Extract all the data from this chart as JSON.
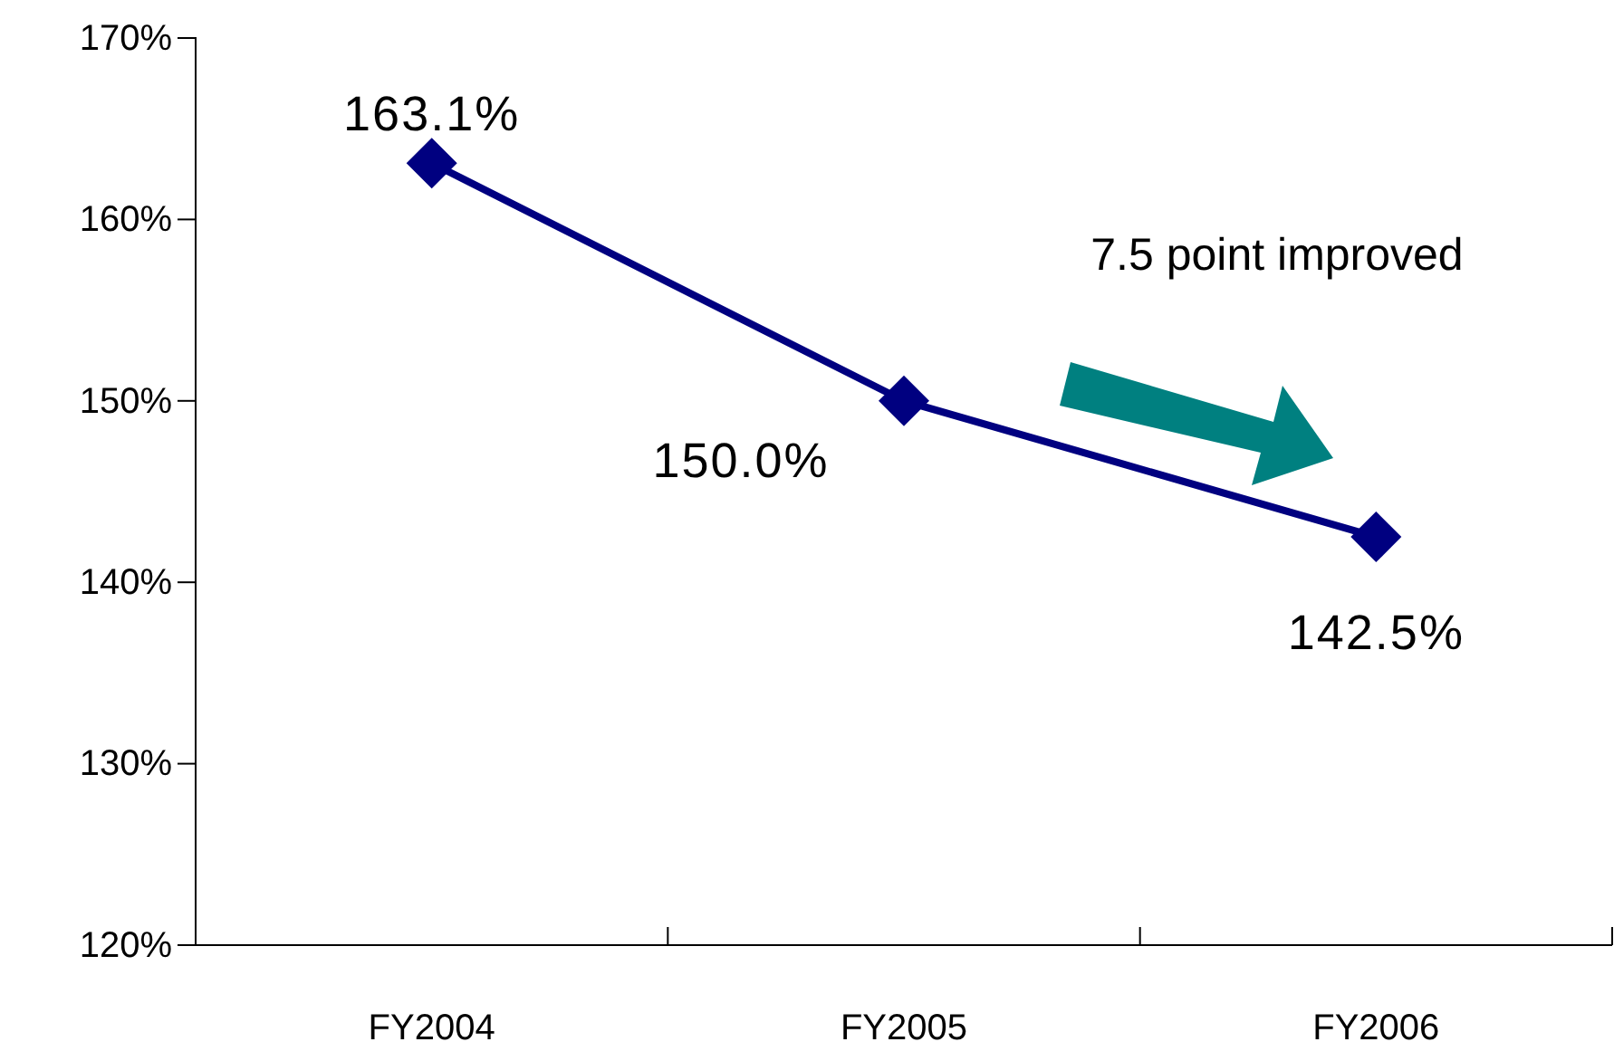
{
  "chart_data": {
    "type": "line",
    "categories": [
      "FY2004",
      "FY2005",
      "FY2006"
    ],
    "series": [
      {
        "color": "#000080",
        "values": [
          163.1,
          150.0,
          142.5
        ],
        "value_labels": [
          "163.1%",
          "150.0%",
          "142.5%"
        ]
      }
    ],
    "ylim": [
      120,
      170
    ],
    "yticks": [
      {
        "value": 120,
        "label": "120%"
      },
      {
        "value": 130,
        "label": "130%"
      },
      {
        "value": 140,
        "label": "140%"
      },
      {
        "value": 150,
        "label": "150%"
      },
      {
        "value": 160,
        "label": "160%"
      },
      {
        "value": 170,
        "label": "170%"
      }
    ],
    "annotations": [
      "7.5 point improved"
    ],
    "marker": "diamond",
    "line_style": "solid",
    "grid": false
  }
}
